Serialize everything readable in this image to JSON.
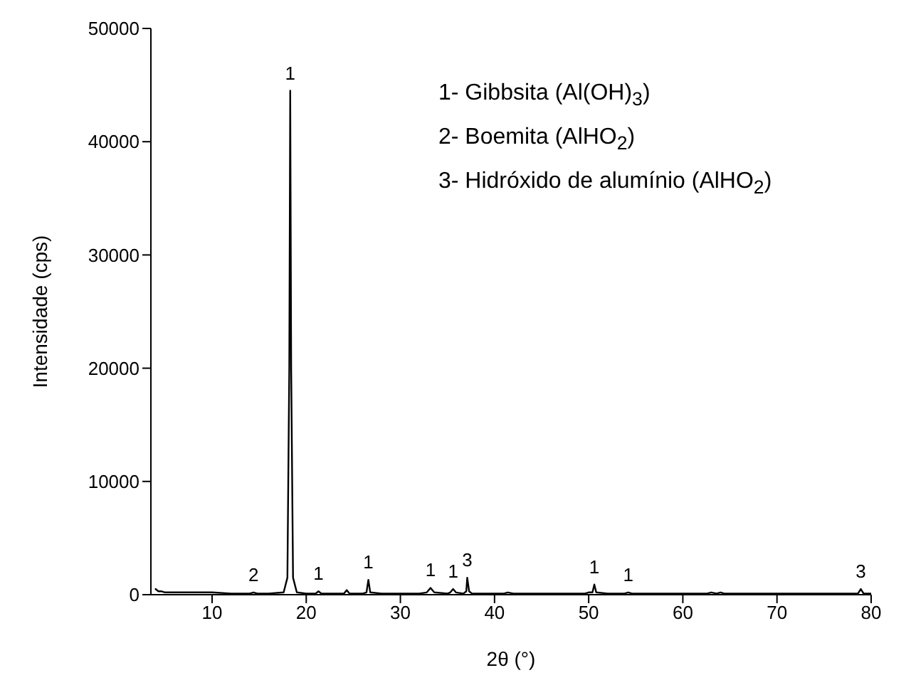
{
  "chart_data": {
    "type": "line",
    "xlabel": "2θ (°)",
    "ylabel": "Intensidade (cps)",
    "x": [
      4,
      4.3,
      4.6,
      5,
      6,
      7,
      8,
      10,
      12,
      14,
      14.4,
      14.8,
      16,
      17.6,
      18,
      18.2,
      18.3,
      18.4,
      18.6,
      19,
      20,
      21,
      21.3,
      21.6,
      23,
      24,
      24.3,
      24.6,
      26,
      26.4,
      26.6,
      26.8,
      28,
      30,
      32,
      32.8,
      33.2,
      33.6,
      35,
      35.3,
      35.6,
      35.9,
      36.7,
      37,
      37.1,
      37.3,
      37.6,
      39,
      41,
      41.4,
      42,
      45,
      48,
      49.6,
      50,
      50.4,
      50.6,
      50.8,
      52,
      53.8,
      54.2,
      54.6,
      58,
      62.6,
      63,
      63.6,
      64,
      64.4,
      68,
      72,
      75,
      78.6,
      78.9,
      79.2,
      80
    ],
    "series": [
      {
        "color": "#000000",
        "values": [
          500,
          300,
          300,
          200,
          200,
          200,
          200,
          200,
          100,
          100,
          200,
          100,
          100,
          200,
          1500,
          20000,
          44500,
          20000,
          1500,
          200,
          100,
          100,
          300,
          100,
          100,
          100,
          400,
          100,
          100,
          200,
          1300,
          200,
          100,
          100,
          100,
          200,
          600,
          200,
          100,
          200,
          500,
          200,
          100,
          300,
          1500,
          300,
          100,
          100,
          100,
          200,
          100,
          100,
          100,
          100,
          200,
          200,
          900,
          200,
          100,
          100,
          200,
          100,
          100,
          100,
          200,
          100,
          200,
          100,
          100,
          100,
          100,
          100,
          500,
          100,
          100
        ]
      }
    ],
    "xlim": [
      3.5,
      80
    ],
    "ylim": [
      0,
      50000
    ],
    "xticks": [
      10,
      20,
      30,
      40,
      50,
      60,
      70,
      80
    ],
    "yticks": [
      0,
      10000,
      20000,
      30000,
      40000,
      50000
    ],
    "grid": false,
    "legend": false,
    "marker": "none",
    "line_style": "solid",
    "annotations": [
      {
        "text": "2",
        "x": 14.4,
        "y": 200
      },
      {
        "text": "1",
        "x": 18.3,
        "y": 44500
      },
      {
        "text": "1",
        "x": 21.3,
        "y": 300
      },
      {
        "text": "1",
        "x": 26.6,
        "y": 1300
      },
      {
        "text": "1",
        "x": 33.2,
        "y": 600
      },
      {
        "text": "1",
        "x": 35.6,
        "y": 500
      },
      {
        "text": "3",
        "x": 37.1,
        "y": 1500
      },
      {
        "text": "1",
        "x": 50.6,
        "y": 900
      },
      {
        "text": "1",
        "x": 54.2,
        "y": 200
      },
      {
        "text": "3",
        "x": 78.9,
        "y": 500
      },
      "1- Gibbsita (Al(OH)$_{3}$)",
      "2- Boemita (AlHO$_{2}$)",
      "3- Hidróxido de alumínio (AlHO$_{2}$)"
    ]
  }
}
